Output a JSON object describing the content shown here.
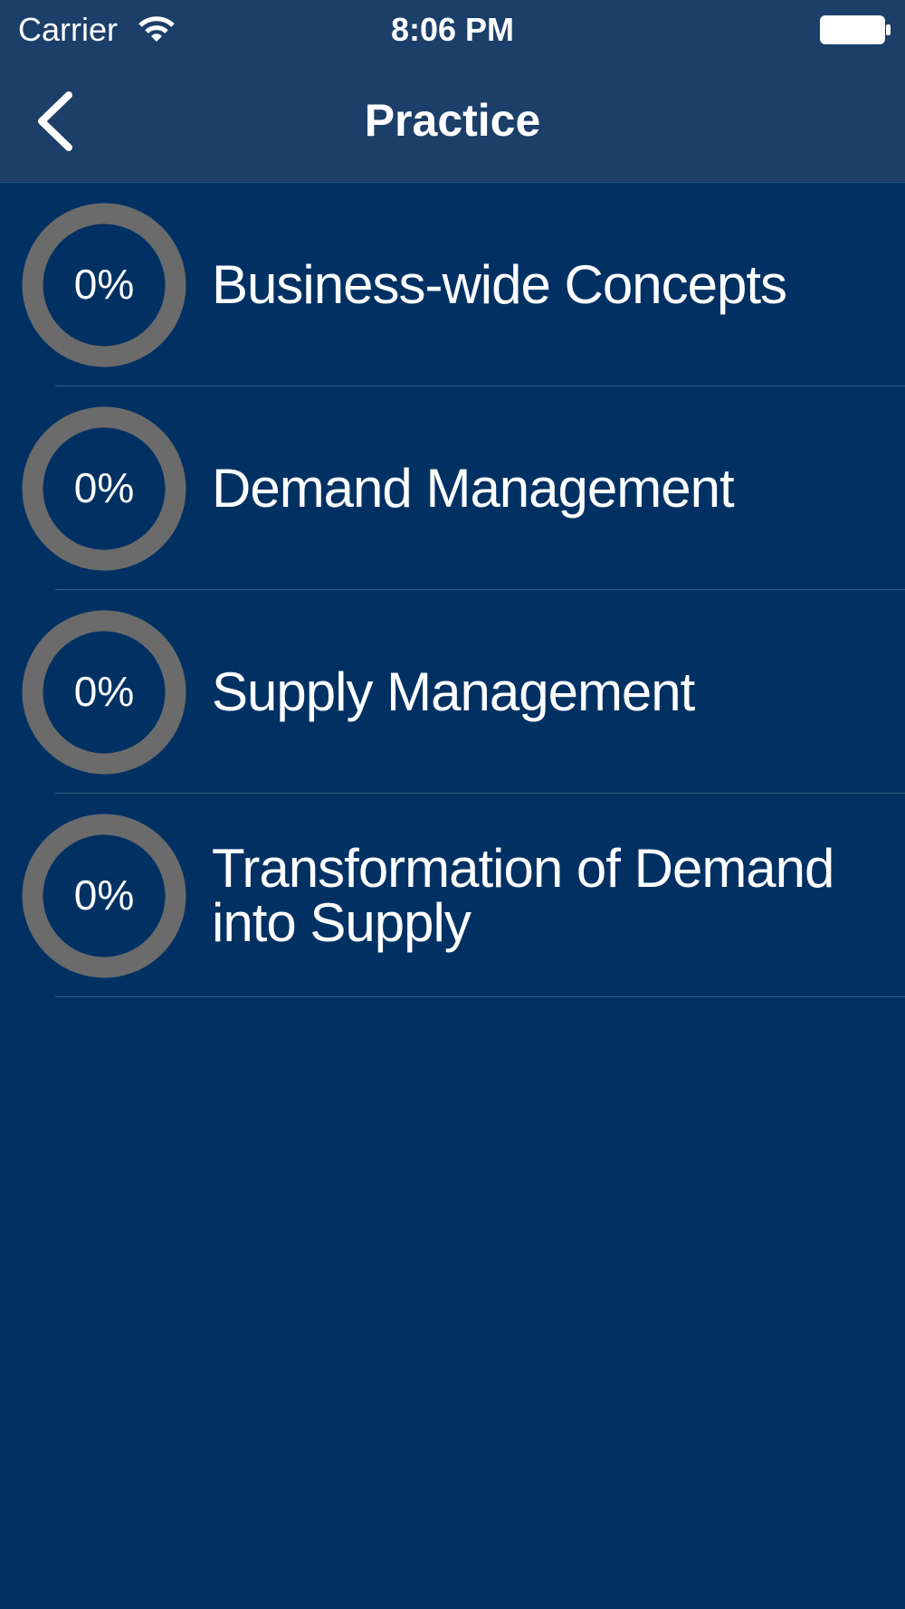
{
  "status_bar": {
    "carrier": "Carrier",
    "time": "8:06 PM"
  },
  "nav_bar": {
    "title": "Practice"
  },
  "list": {
    "items": [
      {
        "progress": "0%",
        "label": "Business-wide Concepts"
      },
      {
        "progress": "0%",
        "label": "Demand Management"
      },
      {
        "progress": "0%",
        "label": "Supply Management"
      },
      {
        "progress": "0%",
        "label": "Transformation of Demand into Supply"
      }
    ]
  }
}
